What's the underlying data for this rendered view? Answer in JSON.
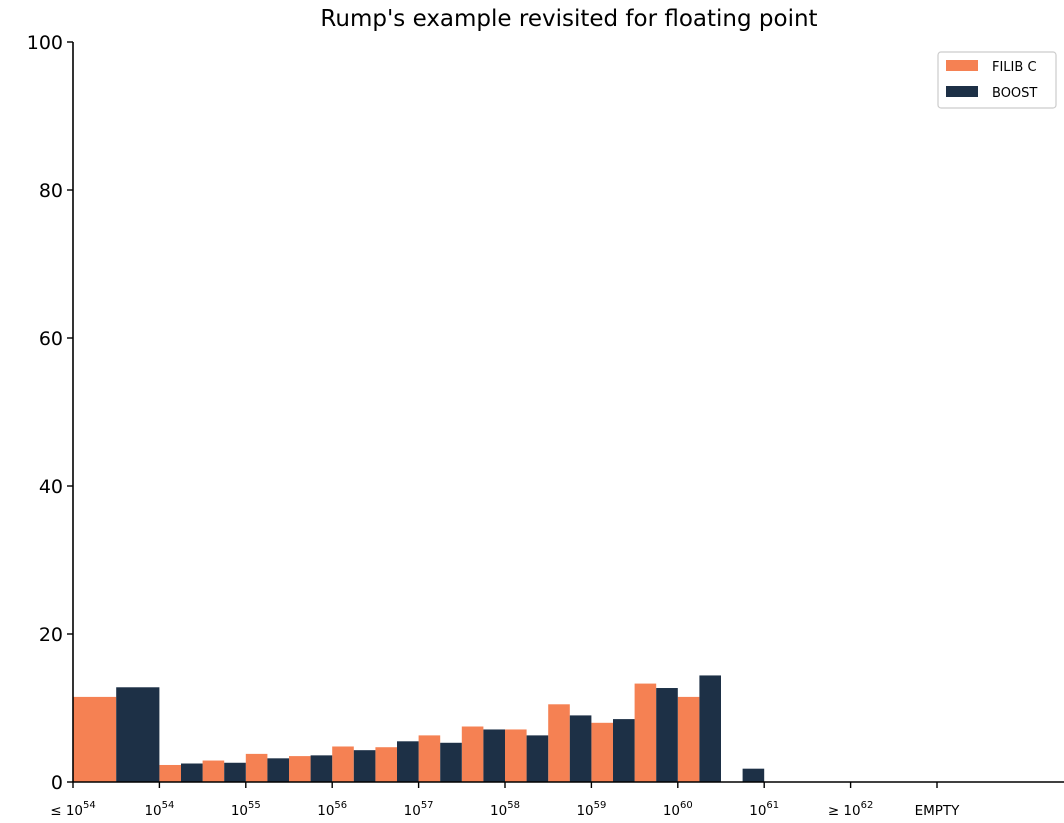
{
  "chart_data": {
    "type": "bar",
    "title": "Rump's example revisited for floating point",
    "xlabel": "",
    "ylabel": "",
    "ylim": [
      0,
      100
    ],
    "yticks": [
      "0",
      "20",
      "40",
      "60",
      "80",
      "100"
    ],
    "xticks": [
      {
        "base": "≤ 10",
        "sup": "54"
      },
      {
        "base": "10",
        "sup": "54"
      },
      {
        "base": "10",
        "sup": "55"
      },
      {
        "base": "10",
        "sup": "56"
      },
      {
        "base": "10",
        "sup": "57"
      },
      {
        "base": "10",
        "sup": "58"
      },
      {
        "base": "10",
        "sup": "59"
      },
      {
        "base": "10",
        "sup": "60"
      },
      {
        "base": "10",
        "sup": "61"
      },
      {
        "base": "≥ 10",
        "sup": "62"
      },
      {
        "base": "EMPTY",
        "sup": ""
      }
    ],
    "legend_position": "top-right",
    "grid": false,
    "bin_starts": [
      0,
      1,
      1.5,
      2,
      2.5,
      3,
      3.5,
      4,
      4.5,
      5,
      5.5,
      6,
      6.5,
      7,
      7.5
    ],
    "bin_widths": [
      1,
      0.5,
      0.5,
      0.5,
      0.5,
      0.5,
      0.5,
      0.5,
      0.5,
      0.5,
      0.5,
      0.5,
      0.5,
      0.5,
      0.5
    ],
    "series": [
      {
        "name": "FILIB C",
        "color": "#f58153",
        "values": [
          11.5,
          2.3,
          2.9,
          3.8,
          3.5,
          4.8,
          4.7,
          6.3,
          7.5,
          7.1,
          10.5,
          8.0,
          13.3,
          11.5,
          0
        ]
      },
      {
        "name": "BOOST",
        "color": "#1d3046",
        "values": [
          12.8,
          2.5,
          2.6,
          3.2,
          3.6,
          4.3,
          5.5,
          5.3,
          7.1,
          6.3,
          9.0,
          8.5,
          12.7,
          14.4,
          1.8
        ]
      }
    ]
  }
}
